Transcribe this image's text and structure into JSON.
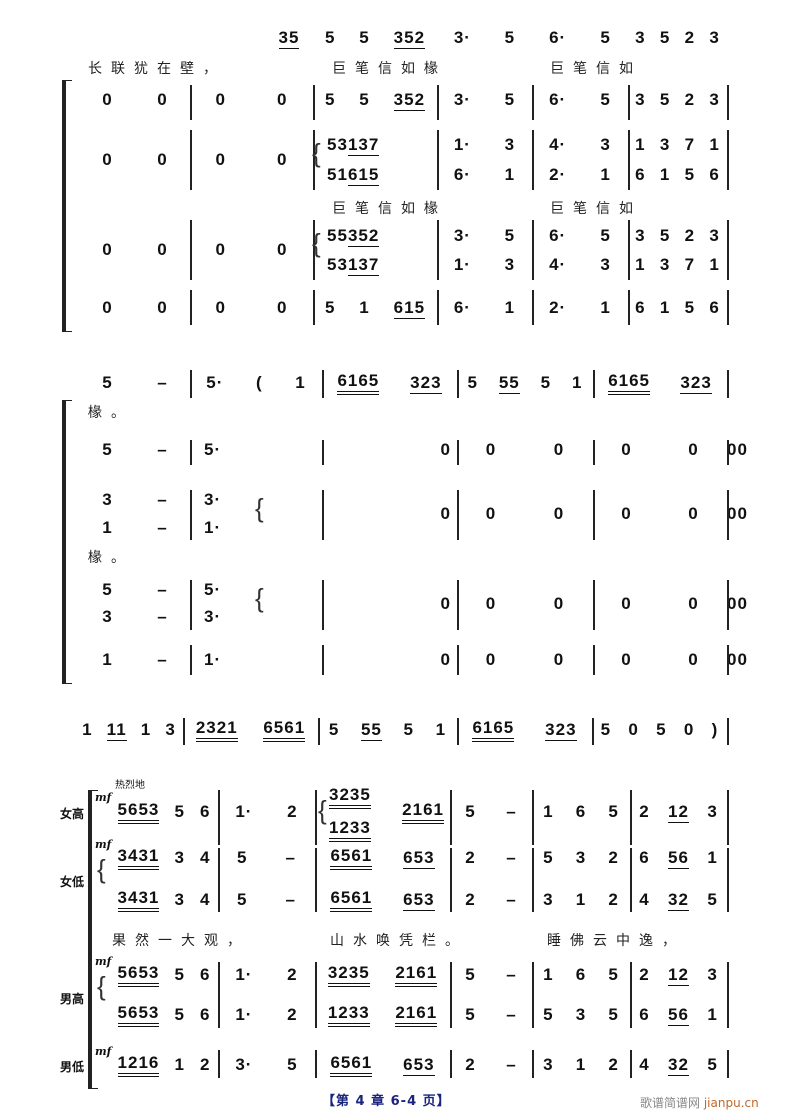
{
  "systems": [
    {
      "rows": [
        {
          "part": "melody",
          "measures": [
            "35",
            "5 5 352",
            "3· 5",
            "6· 5",
            "3 5 2 3"
          ]
        },
        {
          "part": "voice-1",
          "measures": [
            "0 0",
            "0 0",
            "5 5 352",
            "3· 5",
            "6· 5",
            "3 5 2 3"
          ]
        },
        {
          "part": "voice-2-upper",
          "measures": [
            "",
            "",
            "5 3 137",
            "1· 3",
            "4· 3",
            "1 3 7 1"
          ]
        },
        {
          "part": "voice-2-mid",
          "measures": [
            "0 0",
            "0 0",
            "",
            "",
            "",
            ""
          ]
        },
        {
          "part": "voice-2-lower",
          "measures": [
            "",
            "",
            "5 1 615",
            "6· 1",
            "2· 1",
            "6 1 5 6"
          ]
        },
        {
          "part": "voice-3-upper",
          "measures": [
            "",
            "",
            "5 5 352",
            "3· 5",
            "6· 5",
            "3 5 2 3"
          ]
        },
        {
          "part": "voice-3-mid",
          "measures": [
            "0 0",
            "0 0",
            "",
            "",
            "",
            ""
          ]
        },
        {
          "part": "voice-3-lower",
          "measures": [
            "",
            "",
            "5 3 137",
            "1· 3",
            "4· 3",
            "1 3 7 1"
          ]
        },
        {
          "part": "voice-4",
          "measures": [
            "0 0",
            "0 0",
            "5 1 615",
            "6· 1",
            "2· 1",
            "6 1 5 6"
          ]
        }
      ],
      "lyrics": [
        "长联犹在壁，",
        "巨笔信如椽",
        "巨笔信如",
        "巨笔信如椽",
        "巨笔信如"
      ]
    },
    {
      "rows": [
        {
          "part": "melody",
          "measures": [
            "5 –",
            "5· ( 1",
            "6165 323",
            "5 55 5 1",
            "6165 323"
          ]
        },
        {
          "part": "voice-1",
          "measures": [
            "5 –",
            "5·",
            "0",
            "0 0",
            "0 0",
            "0 0"
          ]
        },
        {
          "part": "voice-2-upper",
          "measures": [
            "3 –",
            "3·",
            "",
            "",
            "",
            ""
          ]
        },
        {
          "part": "voice-2-mid",
          "measures": [
            "",
            "",
            "0",
            "0 0",
            "0 0",
            "0 0"
          ]
        },
        {
          "part": "voice-2-lower",
          "measures": [
            "1 –",
            "1·",
            "",
            "",
            "",
            ""
          ]
        },
        {
          "part": "voice-3-upper",
          "measures": [
            "5 –",
            "5·",
            "",
            "",
            "",
            ""
          ]
        },
        {
          "part": "voice-3-mid",
          "measures": [
            "",
            "",
            "0",
            "0 0",
            "0 0",
            "0 0"
          ]
        },
        {
          "part": "voice-3-lower",
          "measures": [
            "3 –",
            "3·",
            "",
            "",
            "",
            ""
          ]
        },
        {
          "part": "voice-4",
          "measures": [
            "1 –",
            "1·",
            "0",
            "0 0",
            "0 0",
            "0 0"
          ]
        }
      ],
      "lyrics": [
        "椽。",
        "椽。"
      ]
    },
    {
      "rows": [
        {
          "part": "melody",
          "measures": [
            "1 11 1 3",
            "2321 6561",
            "5 55 5 1",
            "6165 323",
            "5 0 5 0 )"
          ]
        }
      ],
      "lyrics": []
    },
    {
      "rows": [
        {
          "part": "女高-upper",
          "measures": [
            "",
            "",
            "3235",
            "",
            "",
            ""
          ]
        },
        {
          "part": "女高",
          "measures": [
            "5653 5 6",
            "1· 2",
            "2161",
            "5 –",
            "1 6 5",
            "2 12 3"
          ]
        },
        {
          "part": "女高-lower",
          "measures": [
            "",
            "",
            "1233",
            "",
            "",
            ""
          ]
        },
        {
          "part": "女低-1",
          "measures": [
            "3431 3 4",
            "5 –",
            "6561 653",
            "2 –",
            "5 3 2",
            "6 56 1"
          ]
        },
        {
          "part": "女低-2",
          "measures": [
            "3431 3 4",
            "5 –",
            "6561 653",
            "2 –",
            "3 1 2",
            "4 32 5"
          ]
        },
        {
          "part": "男高-1",
          "measures": [
            "5653 5 6",
            "1· 2",
            "3235 2161",
            "5 –",
            "1 6 5",
            "2 12 3"
          ]
        },
        {
          "part": "男高-2",
          "measures": [
            "5653 5 6",
            "1· 2",
            "1233 2161",
            "5 –",
            "5 3 5",
            "6 56 1"
          ]
        },
        {
          "part": "男低",
          "measures": [
            "1216 1 2",
            "3· 5",
            "6561 653",
            "2 –",
            "3 1 2",
            "4 32 5"
          ]
        }
      ],
      "lyrics": [
        "果然一大观，",
        "山水唤凭栏。",
        "睡佛云中逸，"
      ],
      "part_labels": [
        "女高",
        "女低",
        "男高",
        "男低"
      ],
      "dynamic": "mf",
      "tempo_marking": "热烈地"
    }
  ],
  "footer": {
    "page_label": "【第 4 章  6-4 页】",
    "watermark_cn": "歌谱简谱网",
    "watermark_en": "jianpu.cn"
  },
  "colors": {
    "footer": "#1a237e",
    "watermark": "#888888",
    "watermark_accent": "#c0692a"
  }
}
